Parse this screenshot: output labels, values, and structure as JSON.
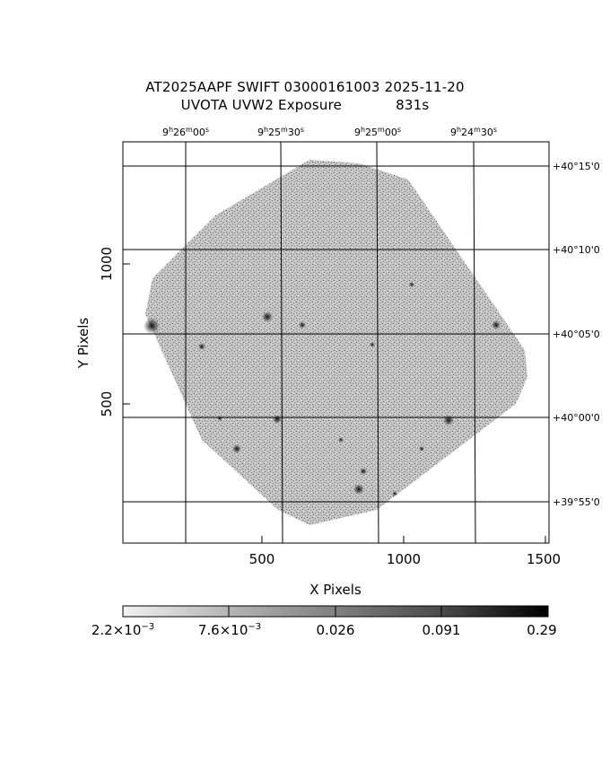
{
  "header": {
    "line1": "AT2025AAPF SWIFT 03000161003 2025-11-20",
    "line2_label": "UVOTA UVW2 Exposure",
    "line2_value": "831s"
  },
  "axes": {
    "xlabel": "X Pixels",
    "ylabel": "Y Pixels",
    "x_ticks": [
      "500",
      "1000",
      "1500"
    ],
    "y_ticks": [
      "1000",
      "500"
    ],
    "ra_ticks": [
      {
        "h": "9",
        "m": "26",
        "s": "00"
      },
      {
        "h": "9",
        "m": "25",
        "s": "30"
      },
      {
        "h": "9",
        "m": "25",
        "s": "00"
      },
      {
        "h": "9",
        "m": "24",
        "s": "30"
      }
    ],
    "dec_ticks": [
      "+40°15'0",
      "+40°10'0",
      "+40°05'0",
      "+40°00'0",
      "+39°55'0"
    ]
  },
  "colorbar": {
    "labels": [
      {
        "mant": "2.2×10",
        "exp": "−3"
      },
      {
        "mant": "7.6×10",
        "exp": "−3"
      },
      {
        "mant": "0.026",
        "exp": ""
      },
      {
        "mant": "0.091",
        "exp": ""
      },
      {
        "mant": "0.29",
        "exp": ""
      }
    ]
  }
}
